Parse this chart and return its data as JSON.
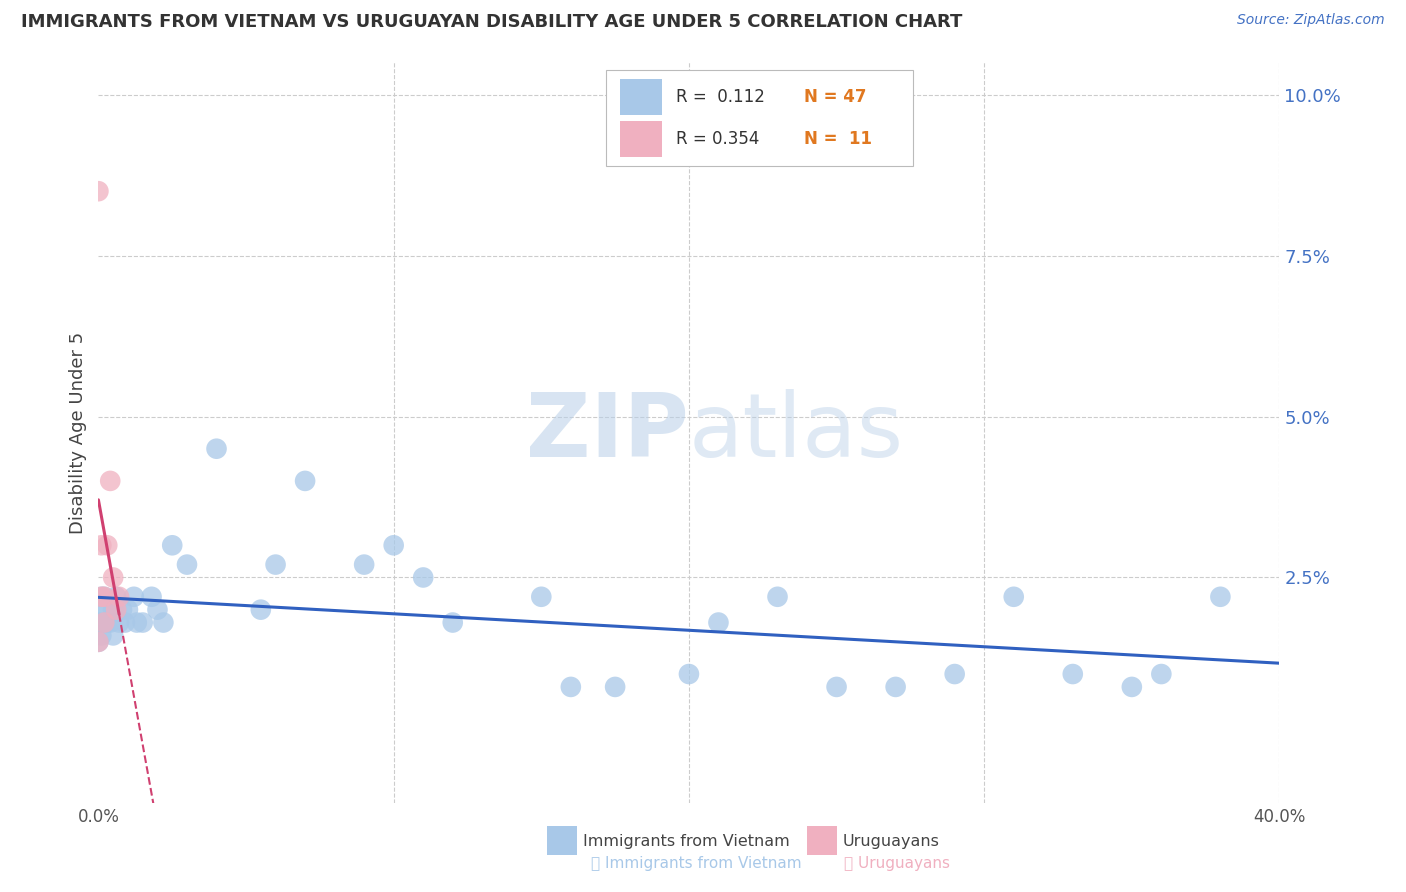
{
  "title": "IMMIGRANTS FROM VIETNAM VS URUGUAYAN DISABILITY AGE UNDER 5 CORRELATION CHART",
  "source_text": "Source: ZipAtlas.com",
  "ylabel": "Disability Age Under 5",
  "xlim": [
    0.0,
    0.4
  ],
  "ylim": [
    -0.01,
    0.105
  ],
  "ytick_vals": [
    0.0,
    0.025,
    0.05,
    0.075,
    0.1
  ],
  "ytick_labels": [
    "",
    "2.5%",
    "5.0%",
    "7.5%",
    "10.0%"
  ],
  "xtick_vals": [
    0.0,
    0.1,
    0.2,
    0.3,
    0.4
  ],
  "xtick_labels": [
    "0.0%",
    "",
    "",
    "",
    "40.0%"
  ],
  "blue_color": "#a8c8e8",
  "pink_color": "#f0b0c0",
  "line_blue": "#3060c0",
  "line_pink": "#d04070",
  "watermark_color": "#dce8f0",
  "background_color": "#ffffff",
  "grid_color": "#cccccc",
  "legend_text_color": "#333333",
  "legend_n_color": "#e07820",
  "tick_color": "#4472c4",
  "viet_x": [
    0.0,
    0.0,
    0.001,
    0.001,
    0.001,
    0.002,
    0.002,
    0.003,
    0.003,
    0.004,
    0.005,
    0.005,
    0.006,
    0.007,
    0.008,
    0.009,
    0.01,
    0.012,
    0.013,
    0.015,
    0.018,
    0.02,
    0.022,
    0.025,
    0.03,
    0.04,
    0.055,
    0.06,
    0.07,
    0.09,
    0.1,
    0.11,
    0.12,
    0.15,
    0.16,
    0.175,
    0.2,
    0.21,
    0.23,
    0.25,
    0.27,
    0.29,
    0.31,
    0.33,
    0.35,
    0.36,
    0.38
  ],
  "viet_y": [
    0.018,
    0.015,
    0.02,
    0.022,
    0.016,
    0.018,
    0.022,
    0.018,
    0.02,
    0.018,
    0.02,
    0.016,
    0.022,
    0.018,
    0.02,
    0.018,
    0.02,
    0.022,
    0.018,
    0.018,
    0.022,
    0.02,
    0.018,
    0.03,
    0.027,
    0.045,
    0.02,
    0.027,
    0.04,
    0.027,
    0.03,
    0.025,
    0.018,
    0.022,
    0.008,
    0.008,
    0.01,
    0.018,
    0.022,
    0.008,
    0.008,
    0.01,
    0.022,
    0.01,
    0.008,
    0.01,
    0.022
  ],
  "urug_x": [
    0.0,
    0.0,
    0.001,
    0.001,
    0.002,
    0.002,
    0.003,
    0.004,
    0.005,
    0.006,
    0.007
  ],
  "urug_y": [
    0.085,
    0.015,
    0.03,
    0.022,
    0.022,
    0.018,
    0.03,
    0.04,
    0.025,
    0.02,
    0.022
  ]
}
